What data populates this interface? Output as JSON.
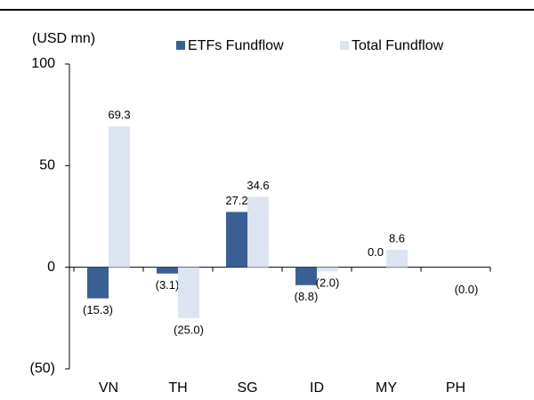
{
  "chart_data": {
    "type": "bar",
    "y_axis_label": "(USD mn)",
    "categories": [
      "VN",
      "TH",
      "SG",
      "ID",
      "MY",
      "PH"
    ],
    "series": [
      {
        "name": "ETFs Fundflow",
        "color": "#3a5f94",
        "values": [
          -15.3,
          -3.1,
          27.2,
          -8.8,
          0.0,
          null
        ],
        "value_labels": [
          "(15.3)",
          "(3.1)",
          "27.2",
          "(8.8)",
          "0.0",
          null
        ]
      },
      {
        "name": "Total Fundflow",
        "color": "#dce3f1",
        "values": [
          69.3,
          -25.0,
          34.6,
          -2.0,
          8.6,
          0
        ],
        "value_labels": [
          "69.3",
          "(25.0)",
          "34.6",
          "(2.0)",
          "8.6",
          "(0.0)"
        ]
      }
    ],
    "ylim": [
      -50,
      100
    ],
    "yticks": [
      100,
      50,
      0,
      {
        "value": -50,
        "label": "(50)"
      }
    ]
  }
}
